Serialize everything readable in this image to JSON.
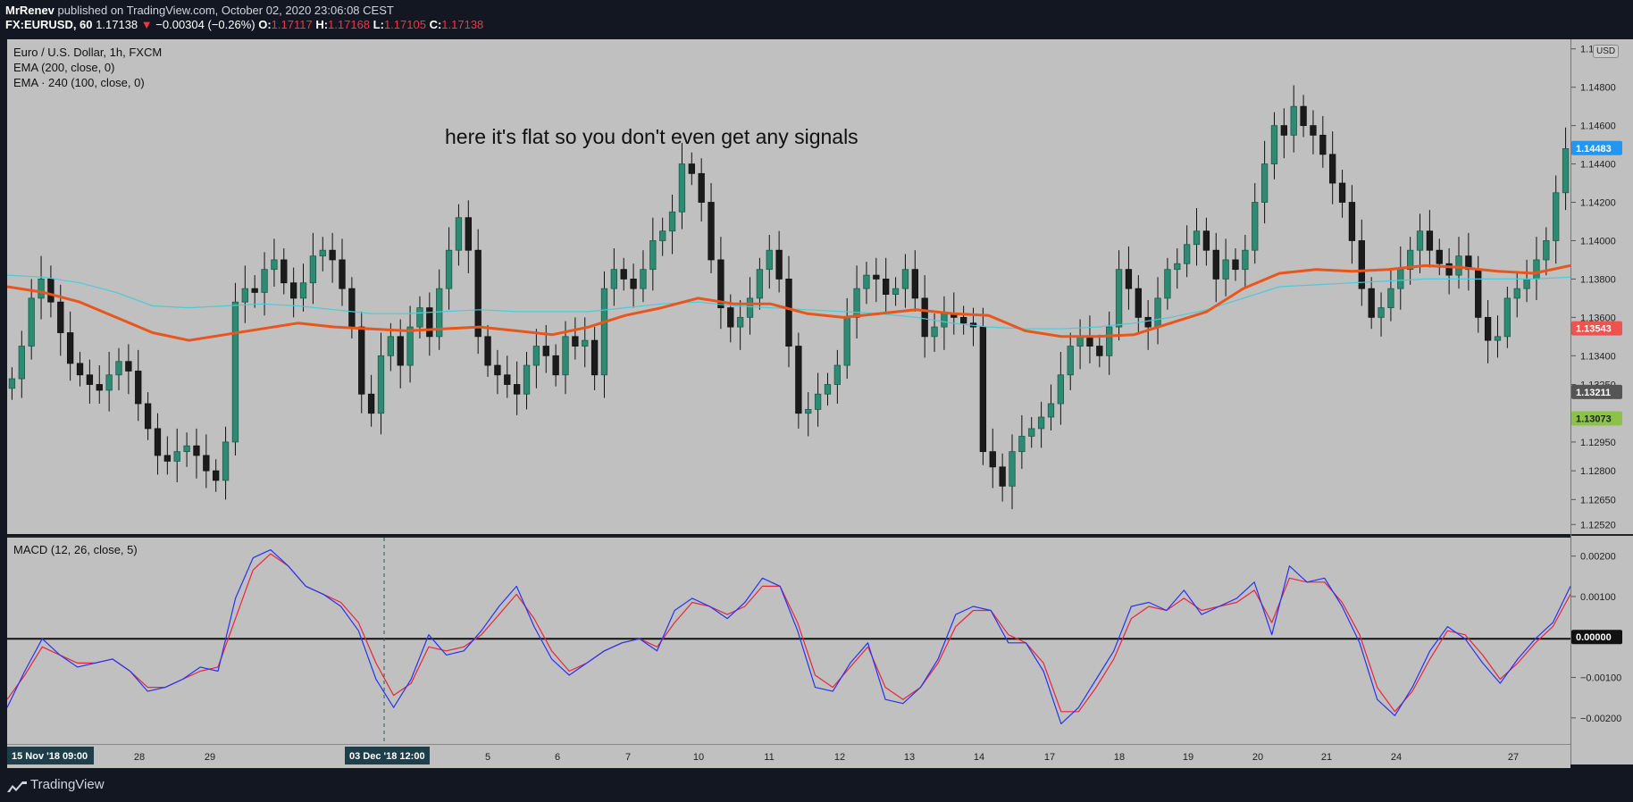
{
  "header": {
    "author": "MrRenev",
    "published": "published on TradingView.com, October 02, 2020 23:06:08 CEST",
    "symbol": "FX:EURUSD, 60",
    "last": "1.17138",
    "arrow": "▼",
    "change": "−0.00304 (−0.26%)",
    "o_label": "O:",
    "o": "1.17117",
    "h_label": "H:",
    "h": "1.17168",
    "l_label": "L:",
    "l": "1.17105",
    "c_label": "C:",
    "c": "1.17138"
  },
  "legend": {
    "title": "Euro / U.S. Dollar, 1h, FXCM",
    "ema1": "EMA (200, close, 0)",
    "ema2": "EMA · 240 (100, close, 0)",
    "macd": "MACD (12, 26, close, 5)"
  },
  "annotation": "here it's flat so you don't even get any signals",
  "currency": "USD",
  "footer": {
    "brand": "TradingView"
  },
  "colors": {
    "pane_bg": "#c0c0c0",
    "ema_thick": "#e8561c",
    "ema_thin": "#4fc9d6",
    "macd_line": "#2633f2",
    "signal_line": "#e8263a",
    "price_tag": "#2196f3",
    "ema_tag": "#ef5350",
    "gray_tag": "#555555",
    "green_tag": "#8bc34a"
  },
  "chart_data": [
    {
      "type": "candlestick",
      "title": "Euro / U.S. Dollar, 1h, FXCM",
      "y_ticks": [
        "1.15000",
        "1.14800",
        "1.14600",
        "1.14400",
        "1.14200",
        "1.14000",
        "1.13800",
        "1.13600",
        "1.13400",
        "1.13250",
        "1.12950",
        "1.12800",
        "1.12650",
        "1.12520"
      ],
      "ylim": [
        1.1247,
        1.1505
      ],
      "x_labels": [
        "15 Nov '18  09:00",
        "28",
        "29",
        "03 Dec '18  12:00",
        "5",
        "6",
        "7",
        "10",
        "11",
        "12",
        "13",
        "14",
        "17",
        "18",
        "19",
        "20",
        "21",
        "24",
        "27"
      ],
      "price_close_series": [
        1.1328,
        1.1345,
        1.137,
        1.138,
        1.1368,
        1.1352,
        1.1336,
        1.133,
        1.1325,
        1.1322,
        1.133,
        1.1337,
        1.1332,
        1.1315,
        1.1302,
        1.1288,
        1.1285,
        1.129,
        1.1293,
        1.1288,
        1.128,
        1.1275,
        1.1295,
        1.1368,
        1.1375,
        1.1373,
        1.1385,
        1.139,
        1.1378,
        1.137,
        1.1378,
        1.1392,
        1.1395,
        1.139,
        1.1375,
        1.1355,
        1.132,
        1.131,
        1.134,
        1.135,
        1.1335,
        1.1355,
        1.1365,
        1.135,
        1.1375,
        1.1395,
        1.1412,
        1.1395,
        1.135,
        1.1335,
        1.133,
        1.1325,
        1.132,
        1.1335,
        1.1345,
        1.134,
        1.133,
        1.135,
        1.1345,
        1.1348,
        1.133,
        1.1375,
        1.1385,
        1.138,
        1.1375,
        1.1385,
        1.14,
        1.1405,
        1.1415,
        1.144,
        1.1435,
        1.142,
        1.139,
        1.1365,
        1.1355,
        1.136,
        1.137,
        1.1385,
        1.1395,
        1.138,
        1.1345,
        1.131,
        1.1312,
        1.132,
        1.1325,
        1.1335,
        1.136,
        1.1375,
        1.1382,
        1.138,
        1.1372,
        1.1375,
        1.1385,
        1.137,
        1.135,
        1.1355,
        1.1362,
        1.136,
        1.1357,
        1.1355,
        1.129,
        1.1282,
        1.1272,
        1.129,
        1.1298,
        1.1302,
        1.1308,
        1.1315,
        1.133,
        1.1345,
        1.135,
        1.1345,
        1.134,
        1.1355,
        1.1385,
        1.1375,
        1.136,
        1.1355,
        1.137,
        1.1385,
        1.1388,
        1.1398,
        1.1405,
        1.1395,
        1.138,
        1.139,
        1.1385,
        1.1395,
        1.142,
        1.144,
        1.146,
        1.1455,
        1.147,
        1.146,
        1.1455,
        1.1445,
        1.143,
        1.142,
        1.14,
        1.1375,
        1.136,
        1.1365,
        1.1375,
        1.1385,
        1.1395,
        1.1405,
        1.1395,
        1.1388,
        1.1382,
        1.1392,
        1.1385,
        1.136,
        1.1348,
        1.135,
        1.137,
        1.1375,
        1.138,
        1.139,
        1.14,
        1.1425,
        1.1448
      ],
      "series": [
        {
          "name": "EMA (200, close, 0)",
          "values": [
            1.1376,
            1.1373,
            1.1368,
            1.136,
            1.1352,
            1.1348,
            1.1351,
            1.1354,
            1.1357,
            1.1355,
            1.1354,
            1.1353,
            1.1354,
            1.1355,
            1.1353,
            1.1351,
            1.1355,
            1.1361,
            1.1365,
            1.137,
            1.1367,
            1.1367,
            1.1362,
            1.136,
            1.1362,
            1.1364,
            1.1362,
            1.1361,
            1.1353,
            1.135,
            1.135,
            1.1351,
            1.1357,
            1.1363,
            1.1375,
            1.1383,
            1.1385,
            1.1384,
            1.1385,
            1.1387,
            1.1386,
            1.1384,
            1.1383,
            1.1387
          ]
        },
        {
          "name": "EMA · 240 (100, close, 0)",
          "values": [
            1.1382,
            1.1381,
            1.1378,
            1.1373,
            1.1366,
            1.1365,
            1.1366,
            1.1367,
            1.1366,
            1.1364,
            1.1362,
            1.1362,
            1.1363,
            1.1364,
            1.1363,
            1.1363,
            1.1363,
            1.1365,
            1.1367,
            1.1368,
            1.1366,
            1.1365,
            1.1364,
            1.1363,
            1.1362,
            1.136,
            1.1357,
            1.1355,
            1.1354,
            1.1354,
            1.1355,
            1.1357,
            1.136,
            1.1364,
            1.137,
            1.1376,
            1.1377,
            1.1378,
            1.1379,
            1.138,
            1.138,
            1.138,
            1.138,
            1.1381
          ]
        }
      ],
      "price_labels": [
        {
          "value": "1.14483"
        },
        {
          "value": "1.13543"
        },
        {
          "value": "1.13211"
        },
        {
          "value": "1.13073"
        }
      ]
    },
    {
      "type": "line",
      "title": "MACD (12, 26, close, 5)",
      "y_ticks": [
        "0.00200",
        "0.00100",
        "0.00000",
        "−0.00100",
        "−0.00200"
      ],
      "ylim": [
        -0.0026,
        0.0025
      ],
      "series": [
        {
          "name": "MACD",
          "values": [
            -0.0017,
            -0.0008,
            0.0,
            -0.0004,
            -0.0007,
            -0.0006,
            -0.0005,
            -0.0008,
            -0.0013,
            -0.0012,
            -0.001,
            -0.0007,
            -0.0008,
            0.001,
            0.002,
            0.0022,
            0.0018,
            0.0013,
            0.0011,
            0.0008,
            0.0002,
            -0.001,
            -0.0017,
            -0.001,
            0.0001,
            -0.0004,
            -0.0003,
            0.0002,
            0.0008,
            0.0013,
            0.0003,
            -0.0005,
            -0.0009,
            -0.0006,
            -0.0003,
            -0.0001,
            0.0,
            -0.0003,
            0.0007,
            0.001,
            0.0008,
            0.0005,
            0.0009,
            0.0015,
            0.0013,
            0.0002,
            -0.0012,
            -0.0013,
            -0.0006,
            -0.0001,
            -0.0015,
            -0.0016,
            -0.0012,
            -0.0005,
            0.0006,
            0.0008,
            0.0007,
            -0.0001,
            -0.0001,
            -0.0008,
            -0.0021,
            -0.0017,
            -0.001,
            -0.0003,
            0.0008,
            0.0009,
            0.0007,
            0.0012,
            0.0006,
            0.0008,
            0.001,
            0.0014,
            0.0001,
            0.0018,
            0.0014,
            0.0015,
            0.0008,
            -0.0001,
            -0.0015,
            -0.0019,
            -0.0012,
            -0.0003,
            0.0003,
            0.0,
            -0.0006,
            -0.0011,
            -0.0005,
            0.0,
            0.0004,
            0.0013
          ]
        },
        {
          "name": "Signal",
          "values": [
            -0.0015,
            -0.0009,
            -0.0002,
            -0.0004,
            -0.0006,
            -0.0006,
            -0.0005,
            -0.0008,
            -0.0012,
            -0.0012,
            -0.001,
            -0.0008,
            -0.0007,
            0.0005,
            0.0017,
            0.0021,
            0.0018,
            0.0013,
            0.0011,
            0.0009,
            0.0004,
            -0.0006,
            -0.0014,
            -0.0011,
            -0.0002,
            -0.0003,
            -0.0002,
            0.0001,
            0.0006,
            0.0011,
            0.0005,
            -0.0003,
            -0.0008,
            -0.0006,
            -0.0003,
            -0.0001,
            0.0,
            -0.0002,
            0.0004,
            0.0009,
            0.0008,
            0.0006,
            0.0008,
            0.0013,
            0.0013,
            0.0004,
            -0.0009,
            -0.0012,
            -0.0007,
            -0.0002,
            -0.0012,
            -0.0015,
            -0.0012,
            -0.0006,
            0.0003,
            0.0007,
            0.0007,
            0.0001,
            -0.0001,
            -0.0006,
            -0.0018,
            -0.0018,
            -0.0012,
            -0.0005,
            0.0005,
            0.0008,
            0.0007,
            0.001,
            0.0007,
            0.0008,
            0.0009,
            0.0012,
            0.0004,
            0.0015,
            0.0014,
            0.0014,
            0.0009,
            0.0001,
            -0.0012,
            -0.0018,
            -0.0013,
            -0.0005,
            0.0002,
            0.0001,
            -0.0004,
            -0.001,
            -0.0006,
            -0.0001,
            0.0003,
            0.0011
          ]
        }
      ],
      "price_labels": [
        {
          "value": "0.00000"
        }
      ]
    }
  ]
}
